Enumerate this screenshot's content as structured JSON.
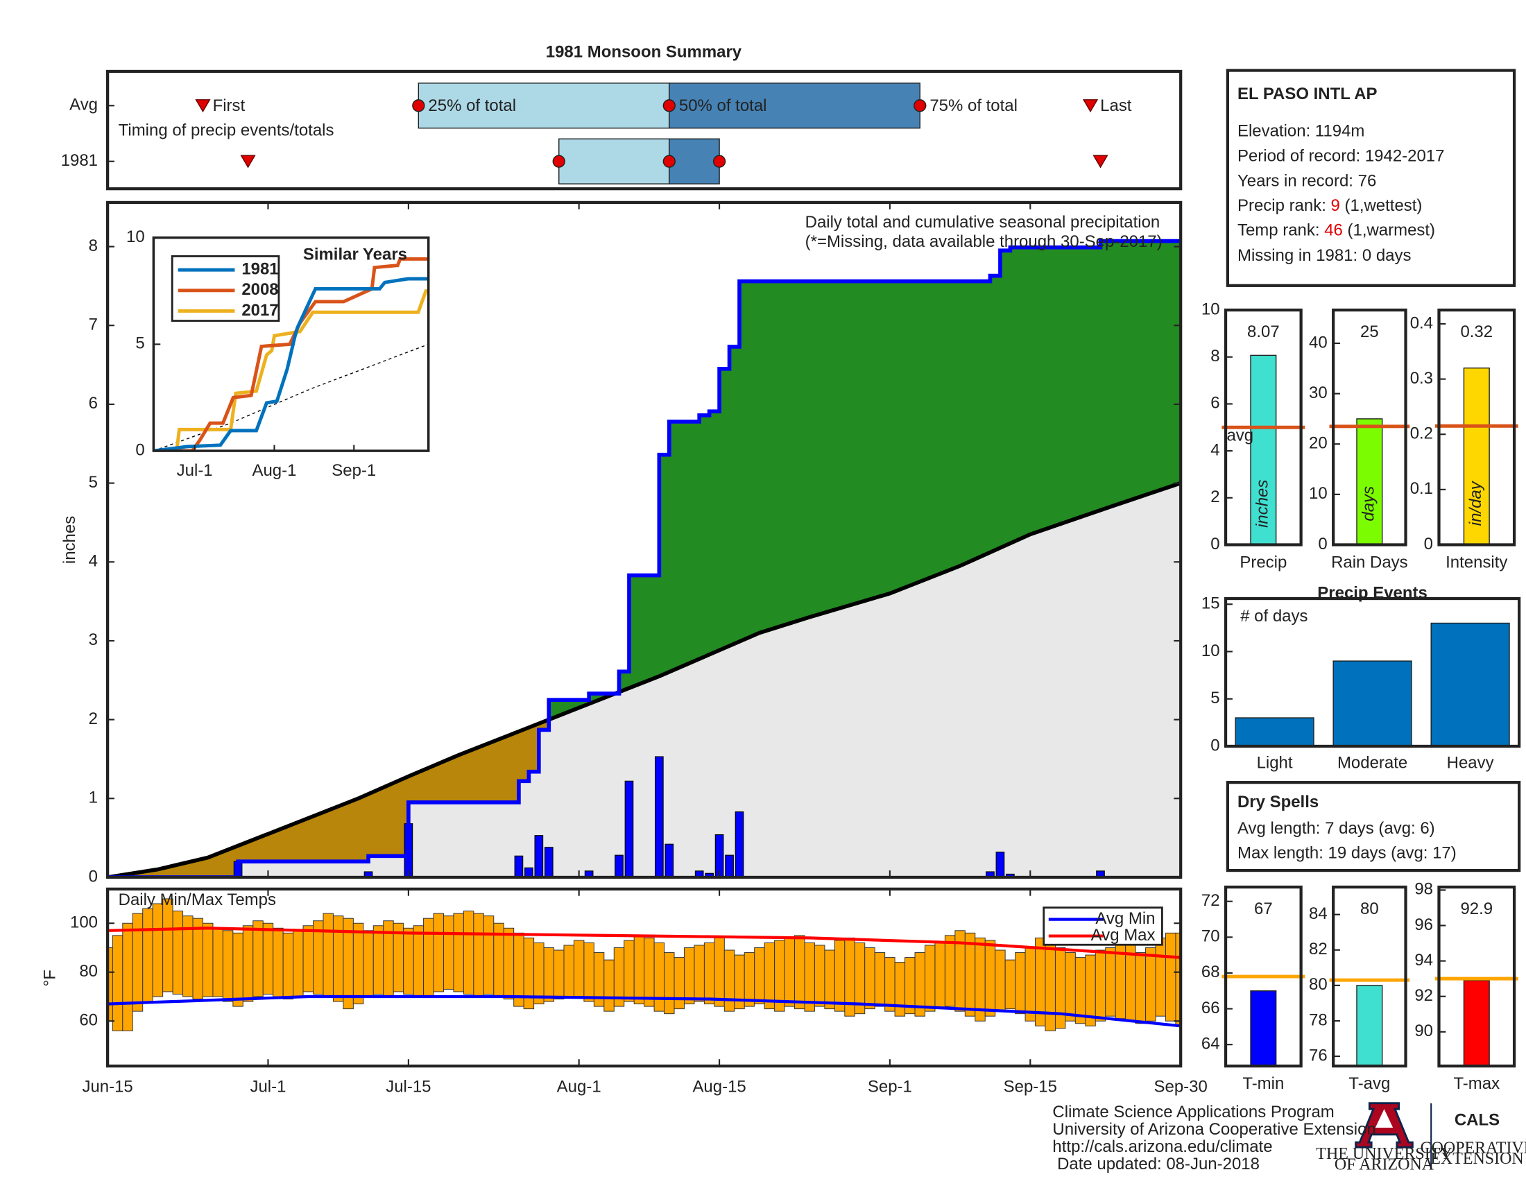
{
  "chart_data": [
    {
      "type": "timing",
      "title": "1981 Monsoon Summary",
      "subtitle": "Timing of precip events/totals",
      "markers": [
        "First",
        "25% of total",
        "50% of total",
        "75% of total",
        "Last"
      ],
      "series": [
        {
          "name": "Avg",
          "values": [
            9.5,
            31,
            56,
            81,
            98
          ]
        },
        {
          "name": "1981",
          "values": [
            14,
            45,
            56,
            61,
            99
          ]
        }
      ],
      "xlim": [
        0,
        107
      ],
      "colors": {
        "early": "#add8e6",
        "late": "#4682b4",
        "marker": "#e00000"
      }
    },
    {
      "type": "cumulative",
      "ylabel": "inches",
      "annotation": "Daily total and cumulative seasonal precipitation",
      "note": "(*=Missing, data available through 30-Sep-2017)",
      "xlim": [
        0,
        107
      ],
      "ylim": [
        0,
        8.56
      ],
      "yticks": [
        0,
        1,
        2,
        3,
        4,
        5,
        6,
        7,
        8
      ],
      "xticks": [
        {
          "value": 0,
          "label": "Jun-15"
        },
        {
          "value": 16,
          "label": "Jul-1"
        },
        {
          "value": 30,
          "label": "Jul-15"
        },
        {
          "value": 47,
          "label": "Aug-1"
        },
        {
          "value": 61,
          "label": "Aug-15"
        },
        {
          "value": 78,
          "label": "Sep-1"
        },
        {
          "value": 92,
          "label": "Sep-15"
        },
        {
          "value": 107,
          "label": "Sep-30"
        }
      ],
      "daily": {
        "color": "#0000ff",
        "values": [
          0,
          0,
          0,
          0,
          0,
          0,
          0,
          0,
          0,
          0,
          0,
          0,
          0,
          0.2,
          0,
          0,
          0,
          0,
          0,
          0,
          0,
          0,
          0,
          0,
          0,
          0,
          0.07,
          0,
          0,
          0,
          0.68,
          0,
          0,
          0,
          0,
          0,
          0,
          0,
          0,
          0,
          0,
          0.27,
          0.12,
          0.53,
          0.38,
          0,
          0,
          0,
          0.08,
          0,
          0,
          0.28,
          1.22,
          0,
          0,
          1.53,
          0.42,
          0,
          0,
          0.08,
          0.05,
          0.54,
          0.28,
          0.83,
          0,
          0,
          0,
          0,
          0,
          0,
          0,
          0,
          0,
          0,
          0,
          0,
          0,
          0,
          0,
          0,
          0,
          0,
          0,
          0,
          0,
          0,
          0,
          0,
          0.07,
          0.32,
          0.04,
          0,
          0,
          0,
          0,
          0,
          0,
          0,
          0,
          0.08,
          0,
          0,
          0,
          0,
          0,
          0,
          0,
          0
        ]
      },
      "average": {
        "color": "#000000",
        "x": [
          0,
          5,
          10,
          16,
          20,
          25,
          30,
          35,
          40,
          44,
          47,
          50,
          55,
          61,
          65,
          70,
          78,
          85,
          92,
          100,
          107
        ],
        "values": [
          0,
          0.1,
          0.25,
          0.55,
          0.75,
          1.0,
          1.28,
          1.55,
          1.8,
          2.0,
          2.15,
          2.3,
          2.55,
          2.88,
          3.1,
          3.3,
          3.6,
          3.95,
          4.35,
          4.7,
          5.0
        ]
      },
      "colors": {
        "above": "#228b22",
        "below": "#b8860b",
        "base": "#e8e8e8"
      }
    },
    {
      "type": "line",
      "title": "Similar Years",
      "xlim": [
        0,
        107
      ],
      "ylim": [
        0,
        10
      ],
      "yticks": [
        0,
        5,
        10
      ],
      "xticks": [
        {
          "value": 16,
          "label": "Jul-1"
        },
        {
          "value": 47,
          "label": "Aug-1"
        },
        {
          "value": 78,
          "label": "Sep-1"
        }
      ],
      "series": [
        {
          "name": "1981",
          "color": "#0072bd",
          "x": [
            0,
            13,
            26,
            30,
            40,
            44,
            48,
            52,
            55,
            56,
            63,
            88,
            90,
            99,
            107
          ],
          "values": [
            0,
            0.2,
            0.27,
            0.95,
            0.95,
            2.25,
            2.33,
            3.83,
            5.36,
            5.78,
            7.6,
            7.6,
            7.9,
            8.07,
            8.07
          ]
        },
        {
          "name": "2008",
          "color": "#d95319",
          "x": [
            0,
            15,
            18,
            22,
            27,
            31,
            38,
            42,
            53,
            57,
            63,
            74,
            85,
            86,
            95,
            96,
            107
          ],
          "values": [
            0,
            0,
            0.5,
            1.3,
            1.3,
            2.5,
            2.6,
            4.9,
            5.0,
            6.0,
            7.0,
            7.0,
            7.6,
            8.6,
            8.7,
            9.0,
            9.0
          ]
        },
        {
          "name": "2017",
          "color": "#edb120",
          "x": [
            0,
            9,
            10,
            30,
            32,
            40,
            44,
            46,
            47,
            57,
            62,
            103,
            106,
            107
          ],
          "values": [
            0,
            0,
            1.0,
            1.0,
            2.7,
            2.8,
            4.5,
            4.7,
            5.4,
            5.6,
            6.5,
            6.5,
            7.5,
            7.5
          ]
        }
      ],
      "average": {
        "x": [
          0,
          30,
          61,
          107
        ],
        "values": [
          0,
          1.3,
          2.9,
          5.0
        ]
      }
    },
    {
      "type": "temps",
      "annotation": "Daily Min/Max Temps",
      "ylabel": "°F",
      "xlim": [
        0,
        107
      ],
      "ylim": [
        41.6,
        114
      ],
      "yticks": [
        60,
        80,
        100
      ],
      "bar_color": "#ffa500",
      "legend": "upper right",
      "max": [
        90,
        95,
        100,
        104,
        106,
        108,
        110,
        105,
        103,
        102,
        100,
        98,
        97,
        96,
        99,
        101,
        100,
        98,
        96,
        97,
        99,
        101,
        104,
        103,
        102,
        100,
        97,
        99,
        101,
        100,
        98,
        99,
        102,
        104,
        103,
        104,
        105,
        104,
        103,
        100,
        98,
        96,
        94,
        92,
        90,
        89,
        91,
        93,
        92,
        88,
        85,
        90,
        93,
        95,
        94,
        92,
        88,
        86,
        90,
        91,
        92,
        94,
        89,
        87,
        88,
        90,
        92,
        93,
        94,
        95,
        92,
        91,
        89,
        93,
        94,
        92,
        90,
        88,
        86,
        84,
        86,
        88,
        91,
        92,
        95,
        97,
        96,
        94,
        93,
        89,
        85,
        88,
        90,
        94,
        92,
        90,
        88,
        86,
        87,
        89,
        90,
        92,
        91,
        88,
        90,
        94,
        96,
        96
      ],
      "min": [
        60,
        56,
        56,
        64,
        68,
        70,
        72,
        71,
        70,
        69,
        70,
        70,
        68,
        66,
        68,
        70,
        71,
        70,
        69,
        70,
        72,
        71,
        70,
        68,
        65,
        67,
        70,
        71,
        70,
        72,
        71,
        70,
        70,
        72,
        73,
        72,
        71,
        70,
        71,
        70,
        69,
        66,
        65,
        67,
        68,
        69,
        70,
        70,
        68,
        66,
        64,
        66,
        68,
        67,
        66,
        64,
        63,
        65,
        67,
        68,
        67,
        66,
        64,
        65,
        66,
        67,
        65,
        64,
        66,
        65,
        64,
        66,
        65,
        64,
        62,
        63,
        65,
        66,
        64,
        62,
        63,
        62,
        64,
        65,
        66,
        64,
        62,
        60,
        62,
        64,
        65,
        63,
        60,
        58,
        56,
        57,
        60,
        59,
        58,
        60,
        62,
        61,
        60,
        59,
        60,
        62,
        60,
        58
      ],
      "series": [
        {
          "name": "Avg Min",
          "color": "#0000ff",
          "x": [
            0,
            20,
            40,
            60,
            75,
            95,
            107
          ],
          "values": [
            67,
            70,
            70,
            69,
            67,
            63,
            58
          ]
        },
        {
          "name": "Avg Max",
          "color": "#ff0000",
          "x": [
            0,
            10,
            30,
            50,
            70,
            85,
            100,
            107
          ],
          "values": [
            97,
            98,
            96,
            95,
            94,
            92,
            88,
            86
          ]
        }
      ]
    },
    {
      "type": "mini_bar",
      "xlabel": "Precip",
      "unit": "inches",
      "value": 8.07,
      "avg": 5,
      "avg_label": "avg",
      "color": "#40e0d0",
      "avg_color": "#d95319",
      "ylim": [
        0,
        10
      ],
      "yticks": [
        0,
        2,
        4,
        6,
        8,
        10
      ]
    },
    {
      "type": "mini_bar",
      "xlabel": "Rain Days",
      "unit": "days",
      "value": 25,
      "avg": 23.5,
      "color": "#7cfc00",
      "avg_color": "#d95319",
      "ylim": [
        0,
        46.6
      ],
      "yticks": [
        0,
        10,
        20,
        30,
        40
      ]
    },
    {
      "type": "mini_bar",
      "xlabel": "Intensity",
      "unit": "in/day",
      "value": 0.32,
      "avg": 0.215,
      "color": "#ffd700",
      "avg_color": "#d95319",
      "ylim": [
        0,
        0.425
      ],
      "yticks": [
        0,
        0.1,
        0.2,
        0.3,
        0.4
      ]
    },
    {
      "type": "bar",
      "title": "Precip Events",
      "annotation": "# of days",
      "categories": [
        "Light",
        "Moderate",
        "Heavy"
      ],
      "values": [
        3,
        9,
        13
      ],
      "color": "#0072bd",
      "ylim": [
        0,
        15.6
      ],
      "yticks": [
        0,
        5,
        10,
        15
      ]
    },
    {
      "type": "mini_bar",
      "xlabel": "T-min",
      "value": 67,
      "avg": 67.8,
      "color": "#0000ff",
      "avg_color": "#ffa500",
      "ylim": [
        62.8,
        72.8
      ],
      "yticks": [
        64,
        66,
        68,
        70,
        72
      ]
    },
    {
      "type": "mini_bar",
      "xlabel": "T-avg",
      "value": 80,
      "avg": 80.3,
      "color": "#40e0d0",
      "avg_color": "#ffa500",
      "ylim": [
        75.45,
        85.55
      ],
      "yticks": [
        76,
        78,
        80,
        82,
        84
      ]
    },
    {
      "type": "mini_bar",
      "xlabel": "T-max",
      "value": 92.9,
      "avg": 93,
      "color": "#ff0000",
      "avg_color": "#ffa500",
      "ylim": [
        88.07,
        98.17
      ],
      "yticks": [
        90,
        92,
        94,
        96,
        98
      ]
    }
  ],
  "station": {
    "name": "EL PASO INTL AP",
    "lines": [
      "Elevation: 1194m",
      "Period of record: 1942-2017",
      "Years in record: 76"
    ],
    "ranks": [
      {
        "label": "Precip rank: ",
        "rank": 9,
        "note": " (1,wettest)"
      },
      {
        "label": "Temp rank: ",
        "rank": 46,
        "note": " (1,warmest)"
      }
    ],
    "missing": "Missing in 1981: 0 days"
  },
  "dry_spells": {
    "title": "Dry Spells",
    "lines": [
      "Avg length: 7 days (avg: 6)",
      "Max length: 19 days (avg: 17)"
    ]
  },
  "footer": {
    "lines": [
      "Climate Science Applications Program",
      "University of Arizona Cooperative Extension",
      "http://cals.arizona.edu/climate",
      " Date updated: 08-Jun-2018"
    ],
    "university": [
      "THE UNIVERSITY",
      "OF ARIZONA"
    ],
    "cals": "CALS",
    "extension": [
      "COOPERATIVE",
      "EXTENSION"
    ]
  }
}
